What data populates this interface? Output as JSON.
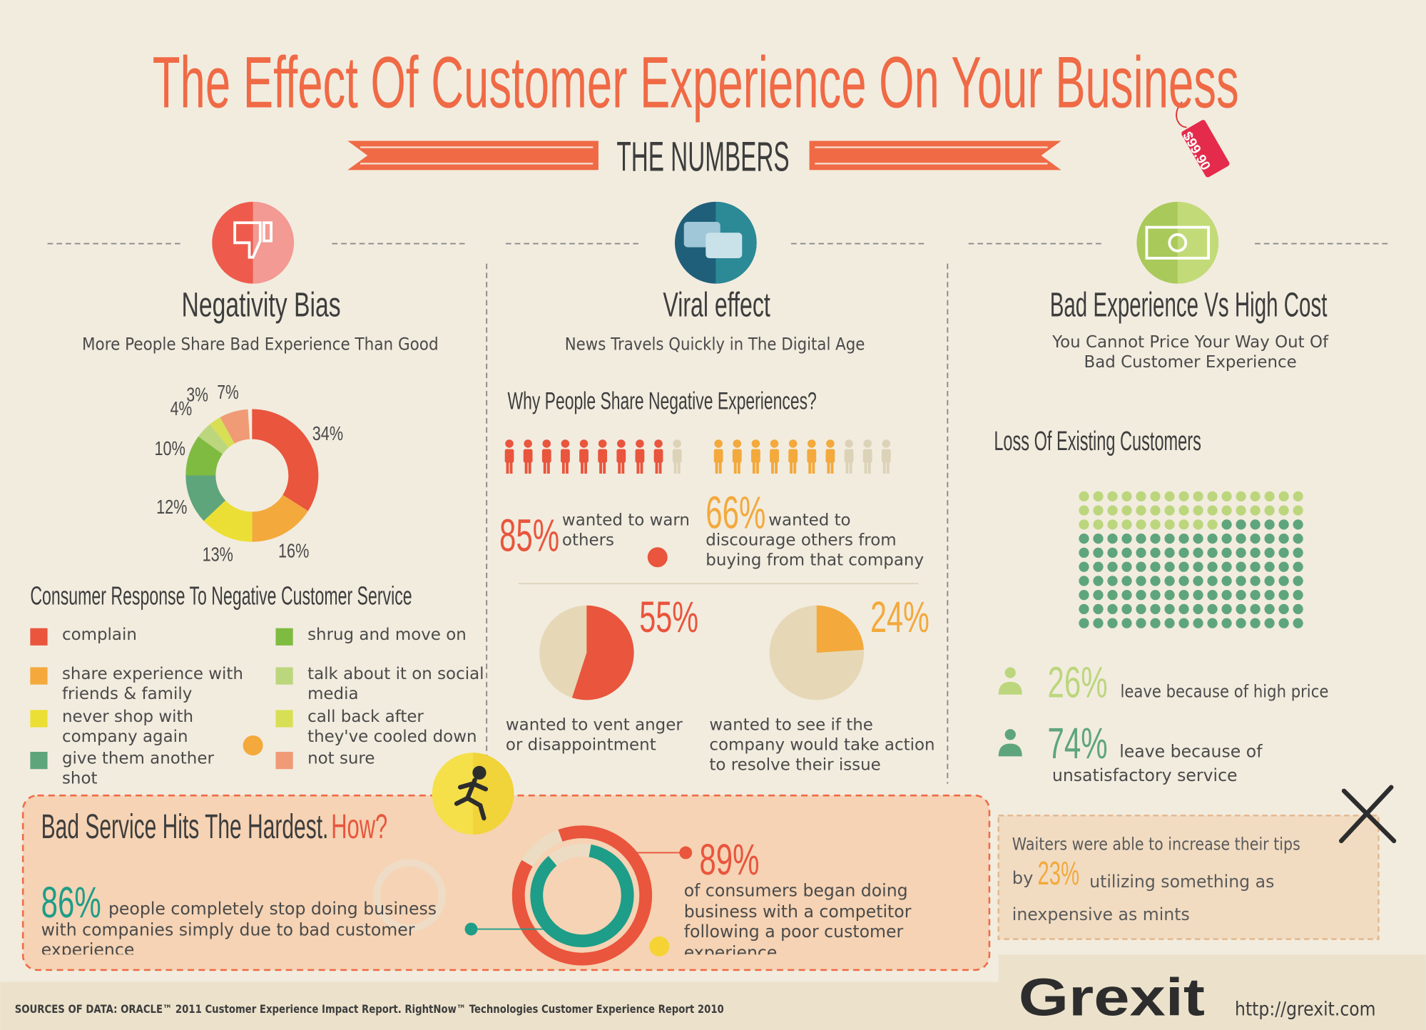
{
  "header": {
    "title": "The Effect Of Customer Experience On Your Business",
    "subtitle": "THE NUMBERS",
    "price_tag": "$99.90"
  },
  "negativity": {
    "title": "Negativity Bias",
    "subtitle": "More People Share Bad Experience Than Good",
    "chart": {
      "type": "donut",
      "title": "Consumer Response To Negative Customer Service",
      "categories": [
        "complain",
        "share experience with friends & family",
        "never shop with company again",
        "give them another shot",
        "shrug and move on",
        "talk about it on social media",
        "call back after they've cooled down",
        "not sure"
      ],
      "values": [
        34,
        16,
        13,
        12,
        10,
        4,
        3,
        7
      ],
      "value_labels": [
        "34%",
        "16%",
        "13%",
        "12%",
        "10%",
        "4%",
        "3%",
        "7%"
      ],
      "colors": [
        "#e9553d",
        "#f3a93c",
        "#ebdf35",
        "#5fa57b",
        "#7fbb41",
        "#bcd67d",
        "#d8df55",
        "#f09b76"
      ]
    }
  },
  "viral": {
    "title": "Viral effect",
    "subtitle": "News Travels Quickly in The Digital Age",
    "question": "Why People Share Negative Experiences?",
    "warn": {
      "value": 85,
      "label": "85%",
      "text": "wanted to warn others",
      "color": "#e9553d"
    },
    "discourage": {
      "value": 66,
      "label": "66%",
      "text": "wanted to discourage others from buying from that company",
      "color": "#f3a93c"
    },
    "vent": {
      "value": 55,
      "label": "55%",
      "text": "wanted to vent anger or disappointment",
      "color": "#e9553d"
    },
    "action": {
      "value": 24,
      "label": "24%",
      "text": "wanted to see if the company would take action to resolve their issue",
      "color": "#f3a93c"
    }
  },
  "cost": {
    "title": "Bad Experience Vs High Cost",
    "subtitle": "You Cannot Price Your Way Out Of Bad Customer Experience",
    "chart_title": "Loss Of Existing Customers",
    "price": {
      "value": 26,
      "label": "26%",
      "text": "leave because of high price",
      "color": "#bcd67d"
    },
    "service": {
      "value": 74,
      "label": "74%",
      "text": "leave because of unsatisfactory service",
      "color": "#5fa57b"
    }
  },
  "tips": {
    "text": "Waiters were able to increase their tips",
    "by": "by",
    "value": 23,
    "label": "23%",
    "rest": "utilizing something as inexpensive as mints",
    "color": "#f3a93c"
  },
  "hardest": {
    "title": "Bad Service Hits The Hardest.",
    "how": "How?",
    "stop": {
      "value": 86,
      "label": "86%",
      "text": "people completely stop doing business with companies simply due to bad customer experience",
      "color": "#1e9d88"
    },
    "competitor": {
      "value": 89,
      "label": "89%",
      "text": "of consumers began doing  business with a competitor following a poor customer experience.",
      "color": "#e9553d"
    }
  },
  "footer": {
    "sources": "SOURCES OF DATA: ORACLE™ 2011 Customer Experience Impact Report. RightNow™ Technologies Customer Experience Report 2010",
    "logo": "Grexit",
    "url": "http://grexit.com"
  }
}
